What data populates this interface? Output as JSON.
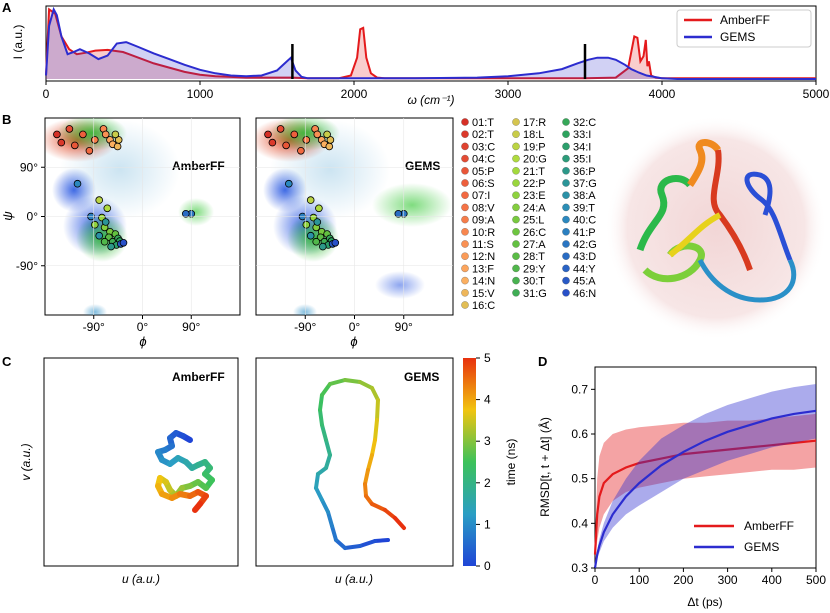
{
  "colors": {
    "amber": "#e41a1c",
    "gems": "#2c2ccf",
    "legend_border": "#cccccc"
  },
  "panel_labels": {
    "a": "A",
    "b": "B",
    "c": "C",
    "d": "D"
  },
  "chart_data": [
    {
      "id": "A",
      "type": "line",
      "xlabel": "ω (cm⁻¹)",
      "ylabel": "I (a.u.)",
      "xlim": [
        0,
        5000
      ],
      "xticks": [
        "0",
        "1000",
        "2000",
        "3000",
        "4000",
        "5000"
      ],
      "xtick_values": [
        0,
        1000,
        2000,
        3000,
        4000,
        5000
      ],
      "vlines": [
        1600,
        3500
      ],
      "legend": [
        "AmberFF",
        "GEMS"
      ],
      "series": [
        {
          "name": "AmberFF",
          "x": [
            0,
            20,
            60,
            100,
            150,
            200,
            260,
            320,
            400,
            500,
            600,
            700,
            800,
            900,
            1000,
            1100,
            1200,
            1300,
            1400,
            1500,
            1560,
            1600,
            1700,
            1800,
            1900,
            1980,
            2020,
            2040,
            2060,
            2080,
            2110,
            2150,
            2200,
            2400,
            2800,
            3200,
            3500,
            3700,
            3780,
            3820,
            3840,
            3860,
            3880,
            3895,
            3905,
            3915,
            3930,
            3960,
            4000,
            4100,
            4500,
            5000
          ],
          "y": [
            0.05,
            0.98,
            0.92,
            0.6,
            0.42,
            0.35,
            0.37,
            0.4,
            0.41,
            0.38,
            0.3,
            0.22,
            0.16,
            0.1,
            0.06,
            0.04,
            0.03,
            0.02,
            0.02,
            0.02,
            0.02,
            0.02,
            0.01,
            0.01,
            0.01,
            0.05,
            0.3,
            0.7,
            0.72,
            0.3,
            0.08,
            0.02,
            0.01,
            0.01,
            0.01,
            0.01,
            0.01,
            0.02,
            0.15,
            0.6,
            0.58,
            0.25,
            0.32,
            0.55,
            0.18,
            0.25,
            0.05,
            0.02,
            0.01,
            0.01,
            0.01,
            0.01
          ]
        },
        {
          "name": "GEMS",
          "x": [
            0,
            20,
            50,
            70,
            100,
            140,
            180,
            220,
            280,
            340,
            400,
            460,
            520,
            600,
            700,
            800,
            900,
            1000,
            1100,
            1200,
            1300,
            1400,
            1500,
            1550,
            1590,
            1620,
            1660,
            1700,
            1800,
            2000,
            2400,
            2800,
            3000,
            3200,
            3350,
            3450,
            3520,
            3580,
            3650,
            3700,
            3760,
            3800,
            3850,
            3900,
            3950,
            4000,
            4100,
            4500,
            5000
          ],
          "y": [
            0.05,
            0.75,
            0.98,
            0.9,
            0.6,
            0.35,
            0.38,
            0.42,
            0.36,
            0.28,
            0.33,
            0.5,
            0.52,
            0.45,
            0.36,
            0.28,
            0.2,
            0.13,
            0.08,
            0.05,
            0.04,
            0.05,
            0.12,
            0.22,
            0.3,
            0.12,
            0.03,
            0.01,
            0.01,
            0.01,
            0.01,
            0.02,
            0.04,
            0.08,
            0.14,
            0.22,
            0.27,
            0.3,
            0.3,
            0.27,
            0.2,
            0.14,
            0.09,
            0.05,
            0.03,
            0.01,
            0.0,
            0.0,
            0.0
          ]
        }
      ]
    },
    {
      "id": "B",
      "type": "scatter",
      "xlabel": "ϕ",
      "ylabel": "ψ",
      "xlim": [
        -180,
        180
      ],
      "ylim": [
        -180,
        180
      ],
      "xticks": [
        "-90°",
        "0°",
        "90°"
      ],
      "yticks": [
        "90°",
        "0°",
        "-90°"
      ],
      "panels": [
        "AmberFF",
        "GEMS"
      ],
      "residues": [
        "01:T",
        "02:T",
        "03:C",
        "04:C",
        "05:P",
        "06:S",
        "07:I",
        "08:V",
        "09:A",
        "10:R",
        "11:S",
        "12:N",
        "13:F",
        "14:N",
        "15:V",
        "16:C",
        "17:R",
        "18:L",
        "19:P",
        "20:G",
        "21:T",
        "22:P",
        "23:E",
        "24:A",
        "25:L",
        "26:C",
        "27:A",
        "28:T",
        "29:Y",
        "30:T",
        "31:G",
        "32:C",
        "33:I",
        "34:I",
        "35:I",
        "36:P",
        "37:G",
        "38:A",
        "39:T",
        "40:C",
        "41:P",
        "42:G",
        "43:D",
        "44:Y",
        "45:A",
        "46:N"
      ]
    },
    {
      "id": "C",
      "type": "line",
      "xlabel": "u (a.u.)",
      "ylabel": "v (a.u.)",
      "panels": [
        "AmberFF",
        "GEMS"
      ],
      "colorbar": {
        "label": "time (ns)",
        "range": [
          0,
          5
        ],
        "ticks": [
          "0",
          "1",
          "2",
          "3",
          "4",
          "5"
        ]
      }
    },
    {
      "id": "D",
      "type": "line",
      "xlabel": "Δt (ps)",
      "ylabel": "RMSD[t, t + Δt] (Å)",
      "xlim": [
        0,
        500
      ],
      "ylim": [
        0.3,
        0.75
      ],
      "xticks": [
        "0",
        "100",
        "200",
        "300",
        "400",
        "500"
      ],
      "yticks": [
        "0.3",
        "0.4",
        "0.5",
        "0.6",
        "0.7"
      ],
      "legend": [
        "AmberFF",
        "GEMS"
      ],
      "series": [
        {
          "name": "AmberFF",
          "x": [
            0,
            5,
            10,
            20,
            40,
            70,
            100,
            150,
            200,
            250,
            300,
            350,
            400,
            450,
            500
          ],
          "y": [
            0.33,
            0.42,
            0.46,
            0.49,
            0.51,
            0.525,
            0.535,
            0.545,
            0.555,
            0.56,
            0.565,
            0.57,
            0.575,
            0.58,
            0.585
          ],
          "band_upper": [
            0.35,
            0.5,
            0.55,
            0.58,
            0.6,
            0.61,
            0.615,
            0.62,
            0.625,
            0.625,
            0.63,
            0.63,
            0.635,
            0.64,
            0.645
          ],
          "band_lower": [
            0.31,
            0.36,
            0.39,
            0.42,
            0.45,
            0.47,
            0.48,
            0.49,
            0.5,
            0.505,
            0.51,
            0.515,
            0.52,
            0.52,
            0.525
          ]
        },
        {
          "name": "GEMS",
          "x": [
            0,
            5,
            10,
            20,
            40,
            70,
            100,
            150,
            200,
            250,
            300,
            350,
            400,
            450,
            500
          ],
          "y": [
            0.3,
            0.33,
            0.35,
            0.38,
            0.42,
            0.46,
            0.49,
            0.53,
            0.56,
            0.585,
            0.605,
            0.62,
            0.635,
            0.645,
            0.652
          ],
          "band_upper": [
            0.305,
            0.34,
            0.365,
            0.4,
            0.45,
            0.5,
            0.54,
            0.59,
            0.62,
            0.645,
            0.665,
            0.68,
            0.695,
            0.705,
            0.712
          ],
          "band_lower": [
            0.295,
            0.32,
            0.335,
            0.36,
            0.39,
            0.42,
            0.44,
            0.47,
            0.5,
            0.52,
            0.54,
            0.555,
            0.57,
            0.58,
            0.59
          ]
        }
      ]
    }
  ]
}
